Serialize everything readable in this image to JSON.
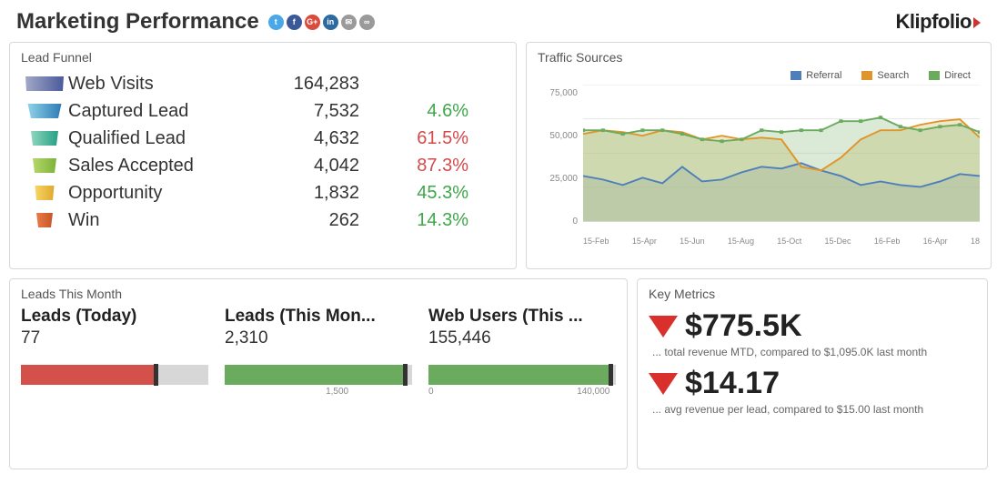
{
  "header": {
    "title": "Marketing Performance",
    "logo": "Klipfolio",
    "social": [
      {
        "name": "twitter",
        "bg": "#4aa7e8",
        "glyph": "t"
      },
      {
        "name": "facebook",
        "bg": "#3b5998",
        "glyph": "f"
      },
      {
        "name": "googleplus",
        "bg": "#d94b3d",
        "glyph": "G+"
      },
      {
        "name": "linkedin",
        "bg": "#2c6aa0",
        "glyph": "in"
      },
      {
        "name": "email",
        "bg": "#9a9a9a",
        "glyph": "✉"
      },
      {
        "name": "link",
        "bg": "#9a9a9a",
        "glyph": "∞"
      }
    ]
  },
  "funnel": {
    "title": "Lead Funnel",
    "rows": [
      {
        "label": "Web Visits",
        "value": "164,283",
        "pct": "",
        "pct_class": "",
        "top": 42,
        "bot": 40,
        "color1": "#a3a8c7",
        "color2": "#4a5a9a"
      },
      {
        "label": "Captured Lead",
        "value": "7,532",
        "pct": "4.6%",
        "pct_class": "good",
        "top": 37,
        "bot": 30,
        "color1": "#8fd3e8",
        "color2": "#2d7ab6"
      },
      {
        "label": "Qualified Lead",
        "value": "4,632",
        "pct": "61.5%",
        "pct_class": "bad",
        "top": 30,
        "bot": 26,
        "color1": "#8fd6c0",
        "color2": "#25a083"
      },
      {
        "label": "Sales Accepted",
        "value": "4,042",
        "pct": "87.3%",
        "pct_class": "bad",
        "top": 26,
        "bot": 22,
        "color1": "#b6d66b",
        "color2": "#7bb438"
      },
      {
        "label": "Opportunity",
        "value": "1,832",
        "pct": "45.3%",
        "pct_class": "good",
        "top": 21,
        "bot": 18,
        "color1": "#f6d565",
        "color2": "#e0a92c"
      },
      {
        "label": "Win",
        "value": "262",
        "pct": "14.3%",
        "pct_class": "good",
        "top": 18,
        "bot": 14,
        "color1": "#e97c4a",
        "color2": "#c85424"
      }
    ]
  },
  "traffic": {
    "title": "Traffic Sources",
    "legend": [
      {
        "label": "Referral",
        "color": "#4f7fbb"
      },
      {
        "label": "Search",
        "color": "#e0952b"
      },
      {
        "label": "Direct",
        "color": "#6aab5e"
      }
    ],
    "yticks": [
      "75,000",
      "50,000",
      "25,000",
      "0"
    ],
    "ylim": [
      0,
      75000
    ],
    "xticks": [
      "15-Feb",
      "15-Apr",
      "15-Jun",
      "15-Aug",
      "15-Oct",
      "15-Dec",
      "16-Feb",
      "16-Apr",
      "18"
    ],
    "series": {
      "referral": {
        "color": "#4f7fbb",
        "fill": "#4f7fbb",
        "fill_opacity": 0.25,
        "values": [
          25000,
          23000,
          20000,
          24000,
          21000,
          30000,
          22000,
          23000,
          27000,
          30000,
          29000,
          32000,
          28000,
          25000,
          20000,
          22000,
          20000,
          19000,
          22000,
          26000,
          25000
        ]
      },
      "search": {
        "color": "#e0952b",
        "fill": "#e0cc8c",
        "fill_opacity": 0.45,
        "values": [
          48000,
          50000,
          49000,
          47000,
          50000,
          49000,
          45000,
          47000,
          45000,
          46000,
          45000,
          30000,
          28000,
          35000,
          45000,
          50000,
          50000,
          53000,
          55000,
          56000,
          46000
        ]
      },
      "direct": {
        "color": "#6aab5e",
        "fill": "#6aab5e",
        "fill_opacity": 0.25,
        "marker": "square",
        "values": [
          50000,
          50000,
          48000,
          50000,
          50000,
          48000,
          45000,
          44000,
          45000,
          50000,
          49000,
          50000,
          50000,
          55000,
          55000,
          57000,
          52000,
          50000,
          52000,
          53000,
          49000
        ]
      }
    },
    "grid_color": "#e6e6e6",
    "background": "#ffffff"
  },
  "leads_month": {
    "title": "Leads This Month",
    "cards": [
      {
        "label": "Leads (Today)",
        "value": "77",
        "bar_color": "#d4504a",
        "fill_pct": 72,
        "marker_pct": 72,
        "scale_left": "",
        "scale_right": ""
      },
      {
        "label": "Leads (This Mon...",
        "value": "2,310",
        "bar_color": "#6aab5e",
        "fill_pct": 96,
        "marker_pct": 96,
        "scale_left": "",
        "scale_right": "1,500",
        "scale_right_pos": 60
      },
      {
        "label": "Web Users (This ...",
        "value": "155,446",
        "bar_color": "#6aab5e",
        "fill_pct": 97,
        "marker_pct": 97,
        "scale_left": "0",
        "scale_right": "140,000",
        "scale_right_pos": 88
      }
    ]
  },
  "key_metrics": {
    "title": "Key Metrics",
    "items": [
      {
        "value": "$775.5K",
        "sub": "... total revenue MTD, compared to $1,095.0K last month"
      },
      {
        "value": "$14.17",
        "sub": "... avg revenue per lead, compared to $15.00 last month"
      }
    ],
    "arrow_color": "#d9302c"
  }
}
